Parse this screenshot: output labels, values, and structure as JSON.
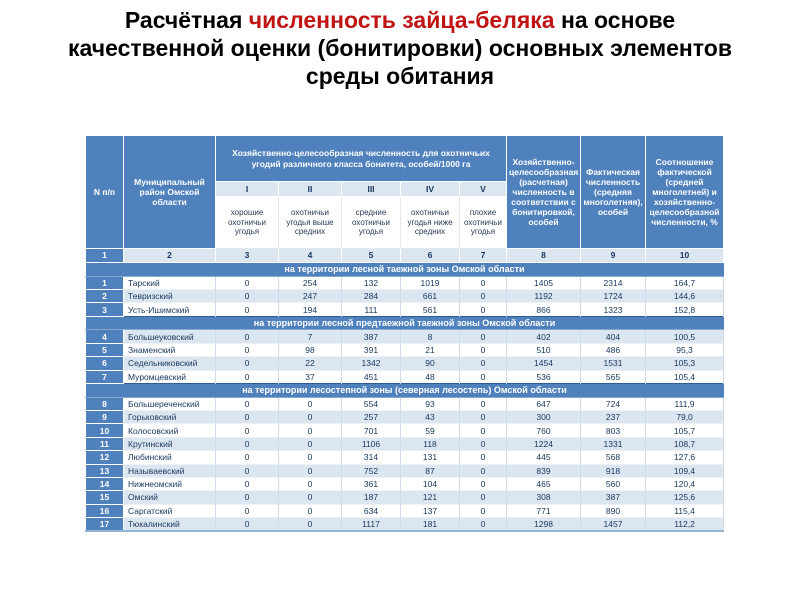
{
  "title": {
    "prefix": "Расчётная ",
    "highlight": "численность зайца-беляка",
    "suffix": " на основе качественной оценки (бонитировки) основных элементов среды обитания"
  },
  "colors": {
    "header_blue": "#4f81bd",
    "band_light": "#dce6f1",
    "title_red": "#c01414",
    "text_dark": "#17375d"
  },
  "table": {
    "columns": {
      "num": "N п/п",
      "district": "Муниципальный район Омской области",
      "group_title": "Хозяйственно-целесообразная численность для охотничьих угодий различного класса бонитета, особей/1000 га",
      "classes": [
        {
          "numeral": "I",
          "desc": "хорошие охотничьи угодья"
        },
        {
          "numeral": "II",
          "desc": "охотничьи угодья выше средних"
        },
        {
          "numeral": "III",
          "desc": "средние охотничьи угодья"
        },
        {
          "numeral": "IV",
          "desc": "охотничьи угодья ниже средних"
        },
        {
          "numeral": "V",
          "desc": "плохие охотничьи угодья"
        }
      ],
      "calc": "Хозяйственно-целесообразная (расчетная) численность в соответствии с бонитировкой, особей",
      "fact": "Фактическая численность (средняя многолетняя), особей",
      "ratio": "Соотношение фактической (средней многолетней) и хозяйственно-целесообразной численности, %"
    },
    "column_numbers": [
      "1",
      "2",
      "3",
      "4",
      "5",
      "6",
      "7",
      "8",
      "9",
      "10"
    ],
    "sections": [
      {
        "title": "на территории лесной таежной зоны Омской области",
        "rows": [
          {
            "n": "1",
            "district": "Тарский",
            "values": [
              "0",
              "254",
              "132",
              "1019",
              "0",
              "1405",
              "2314",
              "164,7"
            ]
          },
          {
            "n": "2",
            "district": "Тевризский",
            "values": [
              "0",
              "247",
              "284",
              "661",
              "0",
              "1192",
              "1724",
              "144,6"
            ]
          },
          {
            "n": "3",
            "district": "Усть-Ишимский",
            "values": [
              "0",
              "194",
              "111",
              "561",
              "0",
              "866",
              "1323",
              "152,8"
            ]
          }
        ]
      },
      {
        "title": "на территории лесной предтаежной таежной зоны Омской области",
        "rows": [
          {
            "n": "4",
            "district": "Большеуковский",
            "values": [
              "0",
              "7",
              "387",
              "8",
              "0",
              "402",
              "404",
              "100,5"
            ]
          },
          {
            "n": "5",
            "district": "Знаменский",
            "values": [
              "0",
              "98",
              "391",
              "21",
              "0",
              "510",
              "486",
              "95,3"
            ]
          },
          {
            "n": "6",
            "district": "Седельниковский",
            "values": [
              "0",
              "22",
              "1342",
              "90",
              "0",
              "1454",
              "1531",
              "105,3"
            ]
          },
          {
            "n": "7",
            "district": "Муромцевский",
            "values": [
              "0",
              "37",
              "451",
              "48",
              "0",
              "536",
              "565",
              "105,4"
            ]
          }
        ]
      },
      {
        "title": "на территории лесостепной зоны (северная лесостепь) Омской области",
        "rows": [
          {
            "n": "8",
            "district": "Большереченский",
            "values": [
              "0",
              "0",
              "554",
              "93",
              "0",
              "647",
              "724",
              "111,9"
            ]
          },
          {
            "n": "9",
            "district": "Горьковский",
            "values": [
              "0",
              "0",
              "257",
              "43",
              "0",
              "300",
              "237",
              "79,0"
            ]
          },
          {
            "n": "10",
            "district": "Колосовский",
            "values": [
              "0",
              "0",
              "701",
              "59",
              "0",
              "760",
              "803",
              "105,7"
            ]
          },
          {
            "n": "11",
            "district": "Крутинский",
            "values": [
              "0",
              "0",
              "1106",
              "118",
              "0",
              "1224",
              "1331",
              "108,7"
            ]
          },
          {
            "n": "12",
            "district": "Любинский",
            "values": [
              "0",
              "0",
              "314",
              "131",
              "0",
              "445",
              "568",
              "127,6"
            ]
          },
          {
            "n": "13",
            "district": "Называевский",
            "values": [
              "0",
              "0",
              "752",
              "87",
              "0",
              "839",
              "918",
              "109,4"
            ]
          },
          {
            "n": "14",
            "district": "Нижнеомский",
            "values": [
              "0",
              "0",
              "361",
              "104",
              "0",
              "465",
              "560",
              "120,4"
            ]
          },
          {
            "n": "15",
            "district": "Омский",
            "values": [
              "0",
              "0",
              "187",
              "121",
              "0",
              "308",
              "387",
              "125,6"
            ]
          },
          {
            "n": "16",
            "district": "Саргатский",
            "values": [
              "0",
              "0",
              "634",
              "137",
              "0",
              "771",
              "890",
              "115,4"
            ]
          },
          {
            "n": "17",
            "district": "Тюкалинский",
            "values": [
              "0",
              "0",
              "1117",
              "181",
              "0",
              "1298",
              "1457",
              "112,2"
            ]
          }
        ]
      }
    ]
  }
}
